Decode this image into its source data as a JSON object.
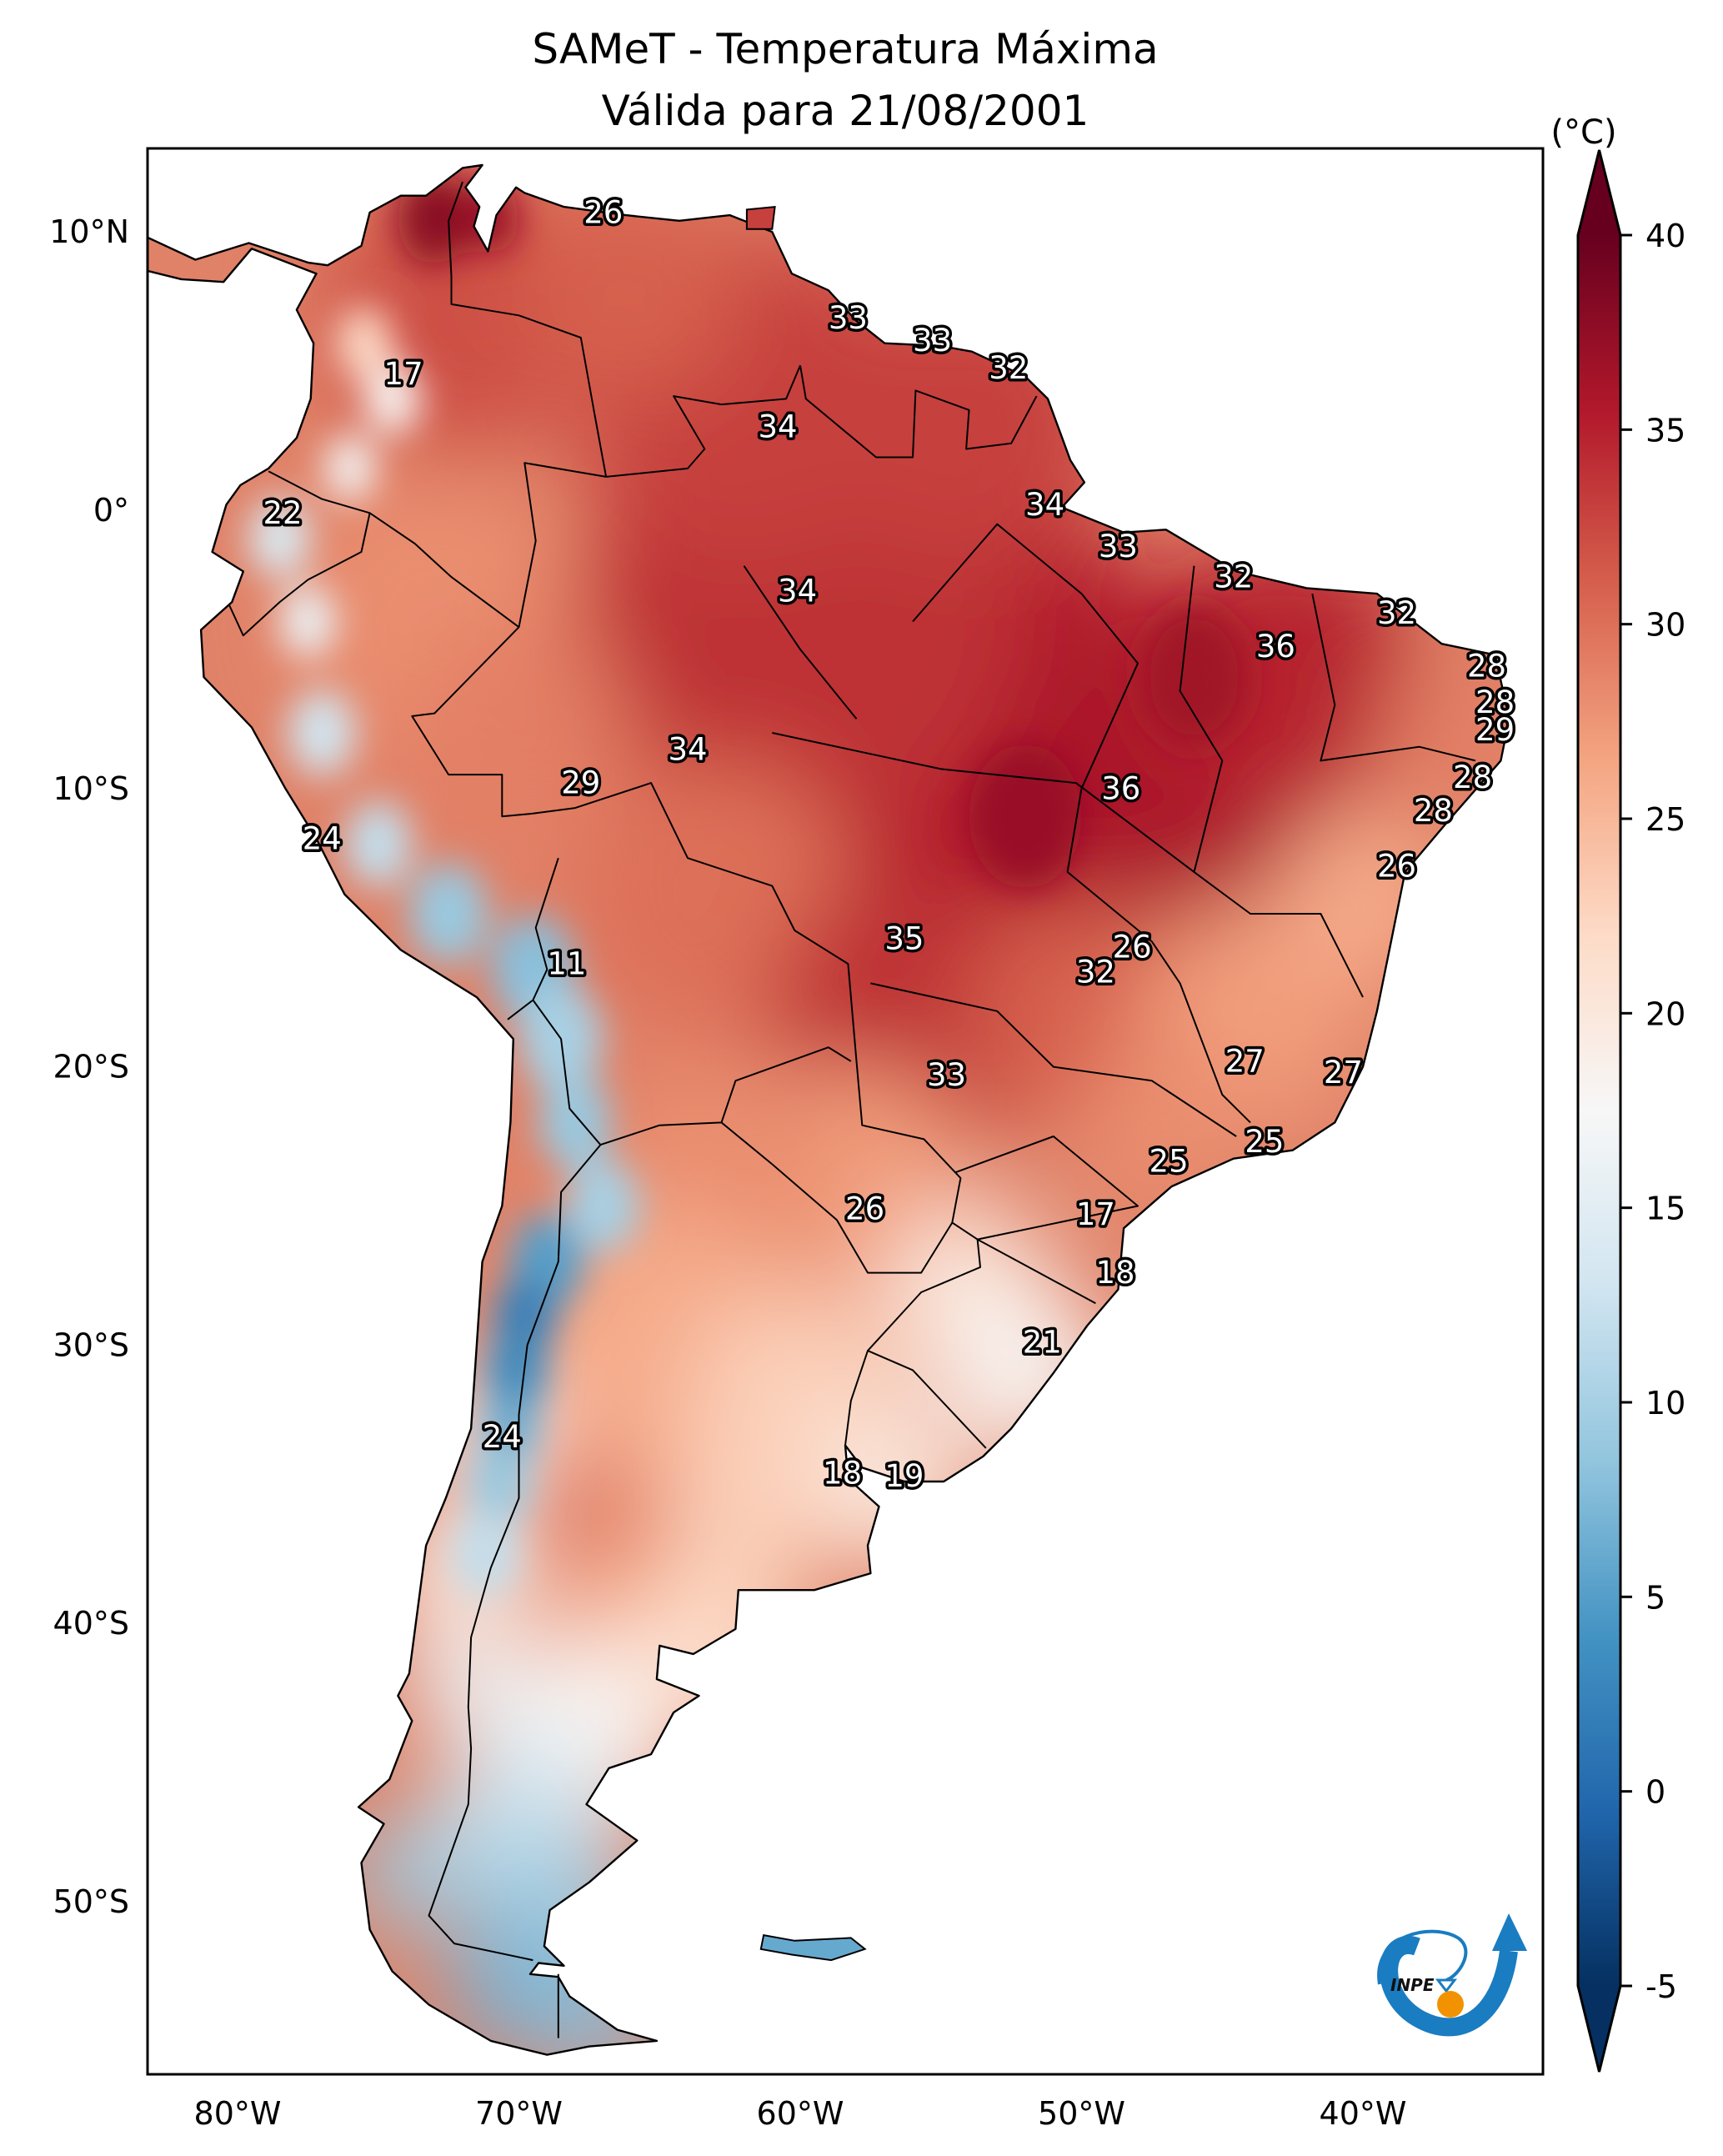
{
  "title": {
    "line1": "SAMeT - Temperatura Máxima",
    "line2": "Válida para 21/08/2001"
  },
  "chart_data": {
    "type": "heatmap",
    "subtype": "geographic-map",
    "title": "SAMeT - Temperatura Máxima",
    "subtitle": "Válida para 21/08/2001",
    "variable": "Temperatura Máxima",
    "units": "°C",
    "region": "South America",
    "extent": {
      "lon": [
        -83.2,
        -33.6
      ],
      "lat": [
        -56.2,
        13.0
      ]
    },
    "xticks": [
      {
        "value": -80,
        "label": "80°W"
      },
      {
        "value": -70,
        "label": "70°W"
      },
      {
        "value": -60,
        "label": "60°W"
      },
      {
        "value": -50,
        "label": "50°W"
      },
      {
        "value": -40,
        "label": "40°W"
      }
    ],
    "yticks": [
      {
        "value": 10,
        "label": "10°N"
      },
      {
        "value": 0,
        "label": "0°"
      },
      {
        "value": -10,
        "label": "10°S"
      },
      {
        "value": -20,
        "label": "20°S"
      },
      {
        "value": -30,
        "label": "30°S"
      },
      {
        "value": -40,
        "label": "40°S"
      },
      {
        "value": -50,
        "label": "50°S"
      }
    ],
    "grid": false,
    "colorbar": {
      "label": "(°C)",
      "range": [
        -5,
        40
      ],
      "extend": "both",
      "colormap": "RdBu_r",
      "placement": "right",
      "ticks": [
        {
          "value": 40,
          "label": "40"
        },
        {
          "value": 35,
          "label": "35"
        },
        {
          "value": 30,
          "label": "30"
        },
        {
          "value": 25,
          "label": "25"
        },
        {
          "value": 20,
          "label": "20"
        },
        {
          "value": 15,
          "label": "15"
        },
        {
          "value": 10,
          "label": "10"
        },
        {
          "value": 5,
          "label": "5"
        },
        {
          "value": 0,
          "label": "0"
        },
        {
          "value": -5,
          "label": "-5"
        }
      ],
      "colors": [
        "#053061",
        "#2166ac",
        "#4393c3",
        "#92c5de",
        "#d1e5f0",
        "#f7f7f7",
        "#fddbc7",
        "#f4a582",
        "#d6604d",
        "#b2182b",
        "#67001f"
      ]
    },
    "point_labels": [
      {
        "lon": -67.0,
        "lat": 10.7,
        "value": 26
      },
      {
        "lon": -74.1,
        "lat": 4.9,
        "value": 17
      },
      {
        "lon": -58.3,
        "lat": 6.9,
        "value": 33
      },
      {
        "lon": -55.3,
        "lat": 6.1,
        "value": 33
      },
      {
        "lon": -52.6,
        "lat": 5.1,
        "value": 32
      },
      {
        "lon": -60.8,
        "lat": 3.0,
        "value": 34
      },
      {
        "lon": -51.3,
        "lat": 0.2,
        "value": 34
      },
      {
        "lon": -78.4,
        "lat": -0.1,
        "value": 22
      },
      {
        "lon": -48.7,
        "lat": -1.3,
        "value": 33
      },
      {
        "lon": -44.6,
        "lat": -2.4,
        "value": 32
      },
      {
        "lon": -60.1,
        "lat": -2.9,
        "value": 34
      },
      {
        "lon": -38.8,
        "lat": -3.7,
        "value": 32
      },
      {
        "lon": -43.1,
        "lat": -4.9,
        "value": 36
      },
      {
        "lon": -35.6,
        "lat": -5.6,
        "value": 28
      },
      {
        "lon": -35.3,
        "lat": -6.9,
        "value": 28
      },
      {
        "lon": -35.3,
        "lat": -7.9,
        "value": 29
      },
      {
        "lon": -64.0,
        "lat": -8.6,
        "value": 34
      },
      {
        "lon": -36.1,
        "lat": -9.6,
        "value": 28
      },
      {
        "lon": -67.8,
        "lat": -9.8,
        "value": 29
      },
      {
        "lon": -48.6,
        "lat": -10.0,
        "value": 36
      },
      {
        "lon": -37.5,
        "lat": -10.8,
        "value": 28
      },
      {
        "lon": -77.0,
        "lat": -11.8,
        "value": 24
      },
      {
        "lon": -38.8,
        "lat": -12.8,
        "value": 26
      },
      {
        "lon": -56.3,
        "lat": -15.4,
        "value": 35
      },
      {
        "lon": -48.2,
        "lat": -15.7,
        "value": 26
      },
      {
        "lon": -68.3,
        "lat": -16.3,
        "value": 11
      },
      {
        "lon": -49.5,
        "lat": -16.6,
        "value": 32
      },
      {
        "lon": -44.2,
        "lat": -19.8,
        "value": 27
      },
      {
        "lon": -40.7,
        "lat": -20.2,
        "value": 27
      },
      {
        "lon": -54.8,
        "lat": -20.3,
        "value": 33
      },
      {
        "lon": -43.5,
        "lat": -22.7,
        "value": 25
      },
      {
        "lon": -46.9,
        "lat": -23.4,
        "value": 25
      },
      {
        "lon": -57.7,
        "lat": -25.1,
        "value": 26
      },
      {
        "lon": -49.5,
        "lat": -25.3,
        "value": 17
      },
      {
        "lon": -48.8,
        "lat": -27.4,
        "value": 18
      },
      {
        "lon": -51.4,
        "lat": -29.9,
        "value": 21
      },
      {
        "lon": -70.6,
        "lat": -33.3,
        "value": 24
      },
      {
        "lon": -58.5,
        "lat": -34.6,
        "value": 18
      },
      {
        "lon": -56.3,
        "lat": -34.7,
        "value": 19
      }
    ]
  },
  "logo": {
    "text": "INPE",
    "colors": {
      "blue": "#1a7cc1",
      "orange": "#f39200"
    }
  }
}
